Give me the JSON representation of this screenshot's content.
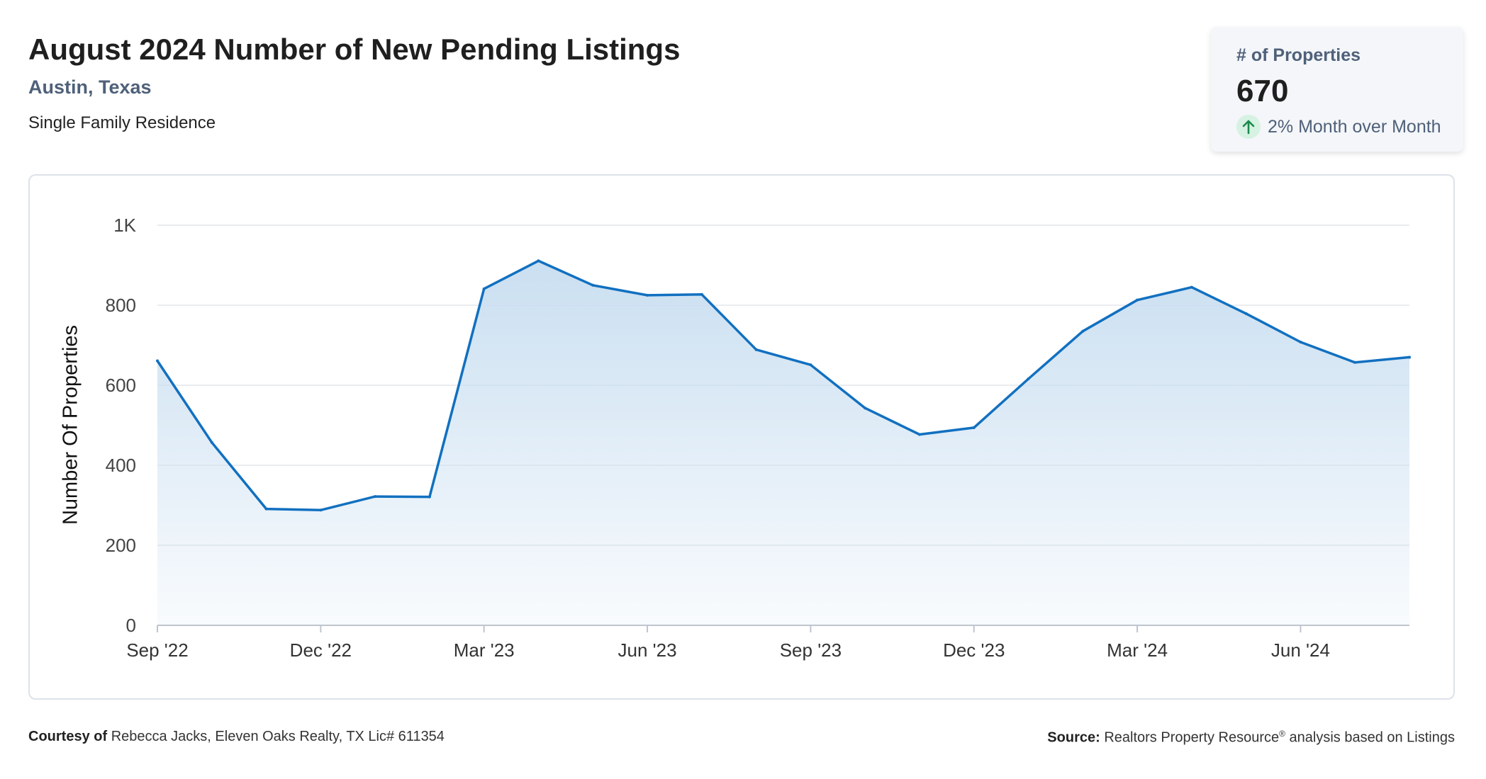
{
  "header": {
    "title": "August 2024 Number of New Pending Listings",
    "location": "Austin, Texas",
    "property_type": "Single Family Residence"
  },
  "kpi": {
    "label": "# of Properties",
    "value": "670",
    "change_text": "2% Month over Month",
    "change_icon": "arrow-up-icon",
    "change_color": "#1b8a4c",
    "badge_color": "#d6f2e2"
  },
  "chart_data": {
    "type": "area",
    "ylabel": "Number Of Properties",
    "xlabel": "",
    "ylim": [
      0,
      1000
    ],
    "y_ticks": [
      0,
      200,
      400,
      600,
      800,
      1000
    ],
    "y_tick_labels": [
      "0",
      "200",
      "400",
      "600",
      "800",
      "1K"
    ],
    "x_tick_labels": [
      "Sep '22",
      "Dec '22",
      "Mar '23",
      "Jun '23",
      "Sep '23",
      "Dec '23",
      "Mar '24",
      "Jun '24"
    ],
    "x_tick_every": 3,
    "grid": true,
    "line_color": "#1170c0",
    "fill_color": "#cfe1f2",
    "categories": [
      "Sep 2022",
      "Oct 2022",
      "Nov 2022",
      "Dec 2022",
      "Jan 2023",
      "Feb 2023",
      "Mar 2023",
      "Apr 2023",
      "May 2023",
      "Jun 2023",
      "Jul 2023",
      "Aug 2023",
      "Sep 2023",
      "Oct 2023",
      "Nov 2023",
      "Dec 2023",
      "Jan 2024",
      "Feb 2024",
      "Mar 2024",
      "Apr 2024",
      "May 2024",
      "Jun 2024",
      "Jul 2024",
      "Aug 2024"
    ],
    "values": [
      661,
      457,
      291,
      288,
      322,
      321,
      841,
      911,
      850,
      825,
      827,
      689,
      651,
      543,
      477,
      494,
      616,
      735,
      813,
      845,
      779,
      708,
      657,
      670
    ]
  },
  "footer": {
    "courtesy_label": "Courtesy of",
    "courtesy_text": "Rebecca Jacks, Eleven Oaks Realty, TX Lic# 611354",
    "source_label": "Source:",
    "source_text": "Realtors Property Resource",
    "source_mark": "®",
    "source_suffix": "analysis based on Listings"
  }
}
